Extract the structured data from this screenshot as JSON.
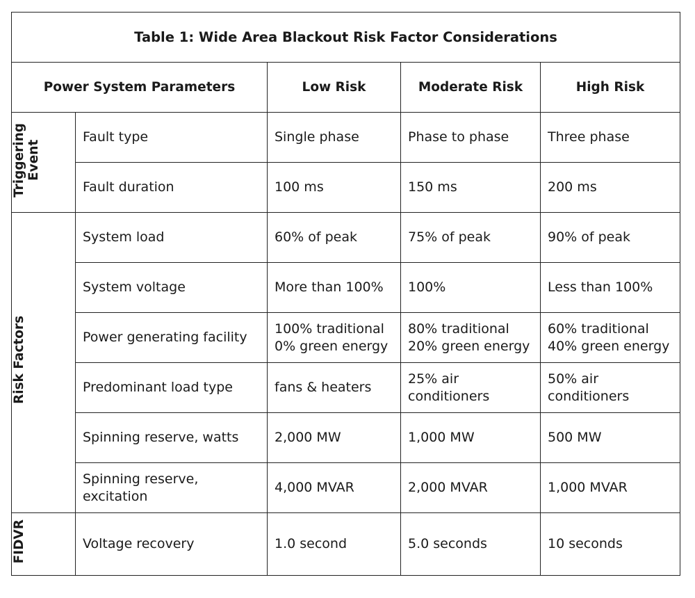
{
  "title": "Table 1: Wide Area Blackout Risk Factor Considerations",
  "headers": {
    "param": "Power System Parameters",
    "low": "Low Risk",
    "moderate": "Moderate Risk",
    "high": "High Risk"
  },
  "groups": [
    {
      "label": "Triggering\nEvent",
      "rows": [
        {
          "param": "Fault type",
          "low": "Single phase",
          "moderate": "Phase to phase",
          "high": "Three phase"
        },
        {
          "param": "Fault duration",
          "low": "100 ms",
          "moderate": "150 ms",
          "high": "200 ms"
        }
      ]
    },
    {
      "label": "Risk Factors",
      "rows": [
        {
          "param": "System load",
          "low": "60% of peak",
          "moderate": "75% of peak",
          "high": "90% of peak"
        },
        {
          "param": "System voltage",
          "low": "More than 100%",
          "moderate": "100%",
          "high": "Less than 100%"
        },
        {
          "param": "Power generating facility",
          "low": "100% traditional\n0% green energy",
          "moderate": "80% traditional\n20% green energy",
          "high": "60% traditional\n40% green energy"
        },
        {
          "param": "Predominant load type",
          "low": "fans & heaters",
          "moderate": "25% air\nconditioners",
          "high": "50% air\nconditioners"
        },
        {
          "param": "Spinning reserve, watts",
          "low": "2,000 MW",
          "moderate": "1,000 MW",
          "high": "500 MW"
        },
        {
          "param": "Spinning reserve,\nexcitation",
          "low": "4,000 MVAR",
          "moderate": "2,000 MVAR",
          "high": "1,000 MVAR"
        }
      ]
    },
    {
      "label": "FIDVR",
      "rows": [
        {
          "param": "Voltage recovery",
          "low": "1.0 second",
          "moderate": "5.0 seconds",
          "high": "10 seconds"
        }
      ]
    }
  ]
}
